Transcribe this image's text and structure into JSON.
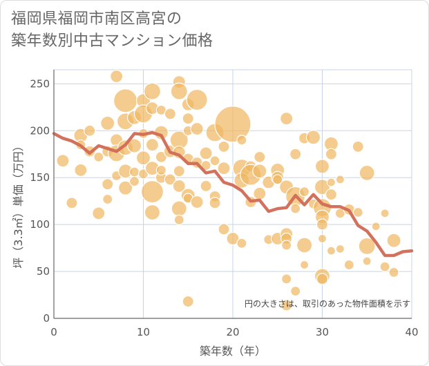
{
  "chart_data": {
    "type": "scatter",
    "title": "福岡県福岡市南区高宮の築年数別中古マンション価格",
    "title_lines": [
      "福岡県福岡市南区高宮の",
      "築年数別中古マンション価格"
    ],
    "xlabel": "築年数（年）",
    "ylabel": "坪（3.3㎡）単価（万円）",
    "xlim": [
      0,
      40
    ],
    "ylim": [
      0,
      265
    ],
    "x_ticks": [
      0,
      10,
      20,
      30,
      40
    ],
    "y_ticks": [
      0,
      50,
      100,
      150,
      200,
      250
    ],
    "grid": true,
    "annotation": "円の大きさは、取引のあった物件面積を示す",
    "colors": {
      "bubble": "#f0b660",
      "bubble_edge": "#ffffff",
      "line": "#d06a55",
      "grid": "#c5d5e8",
      "axis": "#666666"
    },
    "series": [
      {
        "kind": "bubbles",
        "points": [
          [
            1,
            168,
            9
          ],
          [
            2,
            123,
            8
          ],
          [
            3,
            195,
            10
          ],
          [
            3,
            158,
            9
          ],
          [
            3,
            185,
            7
          ],
          [
            4,
            200,
            8
          ],
          [
            4,
            178,
            8
          ],
          [
            5,
            112,
            9
          ],
          [
            5,
            172,
            7
          ],
          [
            6,
            208,
            10
          ],
          [
            6,
            178,
            8
          ],
          [
            6,
            143,
            8
          ],
          [
            6,
            127,
            7
          ],
          [
            7,
            258,
            9
          ],
          [
            7,
            190,
            9
          ],
          [
            7,
            176,
            12
          ],
          [
            7,
            152,
            7
          ],
          [
            8,
            232,
            17
          ],
          [
            8,
            210,
            12
          ],
          [
            8,
            182,
            11
          ],
          [
            8,
            157,
            10
          ],
          [
            8,
            139,
            10
          ],
          [
            9,
            214,
            10
          ],
          [
            9,
            184,
            10
          ],
          [
            9,
            156,
            7
          ],
          [
            9,
            146,
            7
          ],
          [
            10,
            232,
            10
          ],
          [
            10,
            218,
            13
          ],
          [
            10,
            197,
            7
          ],
          [
            10,
            171,
            10
          ],
          [
            10,
            154,
            7
          ],
          [
            11,
            242,
            12
          ],
          [
            11,
            224,
            9
          ],
          [
            11,
            185,
            9
          ],
          [
            11,
            160,
            10
          ],
          [
            11,
            135,
            16
          ],
          [
            11,
            113,
            11
          ],
          [
            12,
            222,
            7
          ],
          [
            12,
            198,
            10
          ],
          [
            12,
            172,
            8
          ],
          [
            12,
            150,
            8
          ],
          [
            12,
            158,
            7
          ],
          [
            13,
            218,
            8
          ],
          [
            13,
            178,
            9
          ],
          [
            13,
            148,
            8
          ],
          [
            14,
            252,
            9
          ],
          [
            14,
            242,
            12
          ],
          [
            14,
            190,
            13
          ],
          [
            14,
            177,
            9
          ],
          [
            14,
            157,
            8
          ],
          [
            14,
            141,
            9
          ],
          [
            14,
            117,
            11
          ],
          [
            14,
            105,
            7
          ],
          [
            15,
            228,
            9
          ],
          [
            15,
            213,
            8
          ],
          [
            15,
            200,
            7
          ],
          [
            15,
            170,
            8
          ],
          [
            15,
            131,
            10
          ],
          [
            15,
            128,
            7
          ],
          [
            16,
            233,
            15
          ],
          [
            16,
            202,
            9
          ],
          [
            16,
            166,
            8
          ],
          [
            16,
            124,
            9
          ],
          [
            15,
            18,
            8
          ],
          [
            17,
            176,
            9
          ],
          [
            17,
            163,
            7
          ],
          [
            17,
            141,
            8
          ],
          [
            18,
            198,
            13
          ],
          [
            18,
            168,
            7
          ],
          [
            18,
            130,
            8
          ],
          [
            18,
            123,
            8
          ],
          [
            19,
            183,
            8
          ],
          [
            19,
            160,
            9
          ],
          [
            19,
            95,
            8
          ],
          [
            20,
            207,
            26
          ],
          [
            20,
            85,
            9
          ],
          [
            21,
            190,
            7
          ],
          [
            21,
            160,
            13
          ],
          [
            21,
            147,
            11
          ],
          [
            21,
            80,
            7
          ],
          [
            22,
            162,
            8
          ],
          [
            22,
            153,
            15
          ],
          [
            22,
            124,
            8
          ],
          [
            23,
            172,
            8
          ],
          [
            23,
            157,
            10
          ],
          [
            23,
            133,
            9
          ],
          [
            24,
            145,
            9
          ],
          [
            24,
            84,
            7
          ],
          [
            25,
            158,
            10
          ],
          [
            25,
            150,
            9
          ],
          [
            25,
            148,
            7
          ],
          [
            25,
            85,
            9
          ],
          [
            26,
            213,
            9
          ],
          [
            26,
            140,
            10
          ],
          [
            26,
            90,
            9
          ],
          [
            26,
            85,
            8
          ],
          [
            26,
            78,
            7
          ],
          [
            26,
            42,
            7
          ],
          [
            26,
            14,
            8
          ],
          [
            27,
            175,
            8
          ],
          [
            27,
            130,
            14
          ],
          [
            27,
            117,
            7
          ],
          [
            27,
            29,
            7
          ],
          [
            28,
            192,
            8
          ],
          [
            28,
            135,
            7
          ],
          [
            28,
            78,
            11
          ],
          [
            28,
            57,
            6
          ],
          [
            29,
            193,
            10
          ],
          [
            29,
            122,
            7
          ],
          [
            30,
            162,
            10
          ],
          [
            30,
            140,
            11
          ],
          [
            30,
            118,
            13
          ],
          [
            30,
            108,
            10
          ],
          [
            30,
            100,
            8
          ],
          [
            30,
            85,
            6
          ],
          [
            30,
            45,
            11
          ],
          [
            30,
            42,
            8
          ],
          [
            31,
            186,
            10
          ],
          [
            31,
            175,
            8
          ],
          [
            31,
            145,
            6
          ],
          [
            31,
            72,
            6
          ],
          [
            31,
            132,
            8
          ],
          [
            32,
            148,
            6
          ],
          [
            32,
            112,
            7
          ],
          [
            32,
            74,
            6
          ],
          [
            33,
            116,
            8
          ],
          [
            33,
            57,
            7
          ],
          [
            34,
            183,
            8
          ],
          [
            34,
            113,
            7
          ],
          [
            35,
            155,
            11
          ],
          [
            35,
            77,
            12
          ],
          [
            35,
            61,
            6
          ],
          [
            36,
            98,
            6
          ],
          [
            37,
            112,
            6
          ],
          [
            37,
            55,
            7
          ],
          [
            38,
            83,
            10
          ],
          [
            38,
            49,
            7
          ]
        ]
      },
      {
        "kind": "line",
        "points": [
          [
            0,
            197
          ],
          [
            1,
            192
          ],
          [
            2,
            189
          ],
          [
            3,
            184
          ],
          [
            4,
            176
          ],
          [
            5,
            184
          ],
          [
            6,
            181
          ],
          [
            7,
            178
          ],
          [
            8,
            185
          ],
          [
            9,
            197
          ],
          [
            10,
            196
          ],
          [
            11,
            198
          ],
          [
            12,
            195
          ],
          [
            13,
            177
          ],
          [
            14,
            174
          ],
          [
            15,
            165
          ],
          [
            16,
            165
          ],
          [
            17,
            155
          ],
          [
            18,
            157
          ],
          [
            19,
            145
          ],
          [
            20,
            142
          ],
          [
            21,
            136
          ],
          [
            22,
            125
          ],
          [
            23,
            126
          ],
          [
            24,
            114
          ],
          [
            25,
            117
          ],
          [
            26,
            118
          ],
          [
            27,
            131
          ],
          [
            28,
            121
          ],
          [
            29,
            132
          ],
          [
            30,
            122
          ],
          [
            31,
            119
          ],
          [
            32,
            119
          ],
          [
            33,
            115
          ],
          [
            34,
            99
          ],
          [
            35,
            93
          ],
          [
            36,
            81
          ],
          [
            37,
            67
          ],
          [
            38,
            67
          ],
          [
            39,
            71
          ],
          [
            40,
            72
          ]
        ]
      }
    ]
  }
}
